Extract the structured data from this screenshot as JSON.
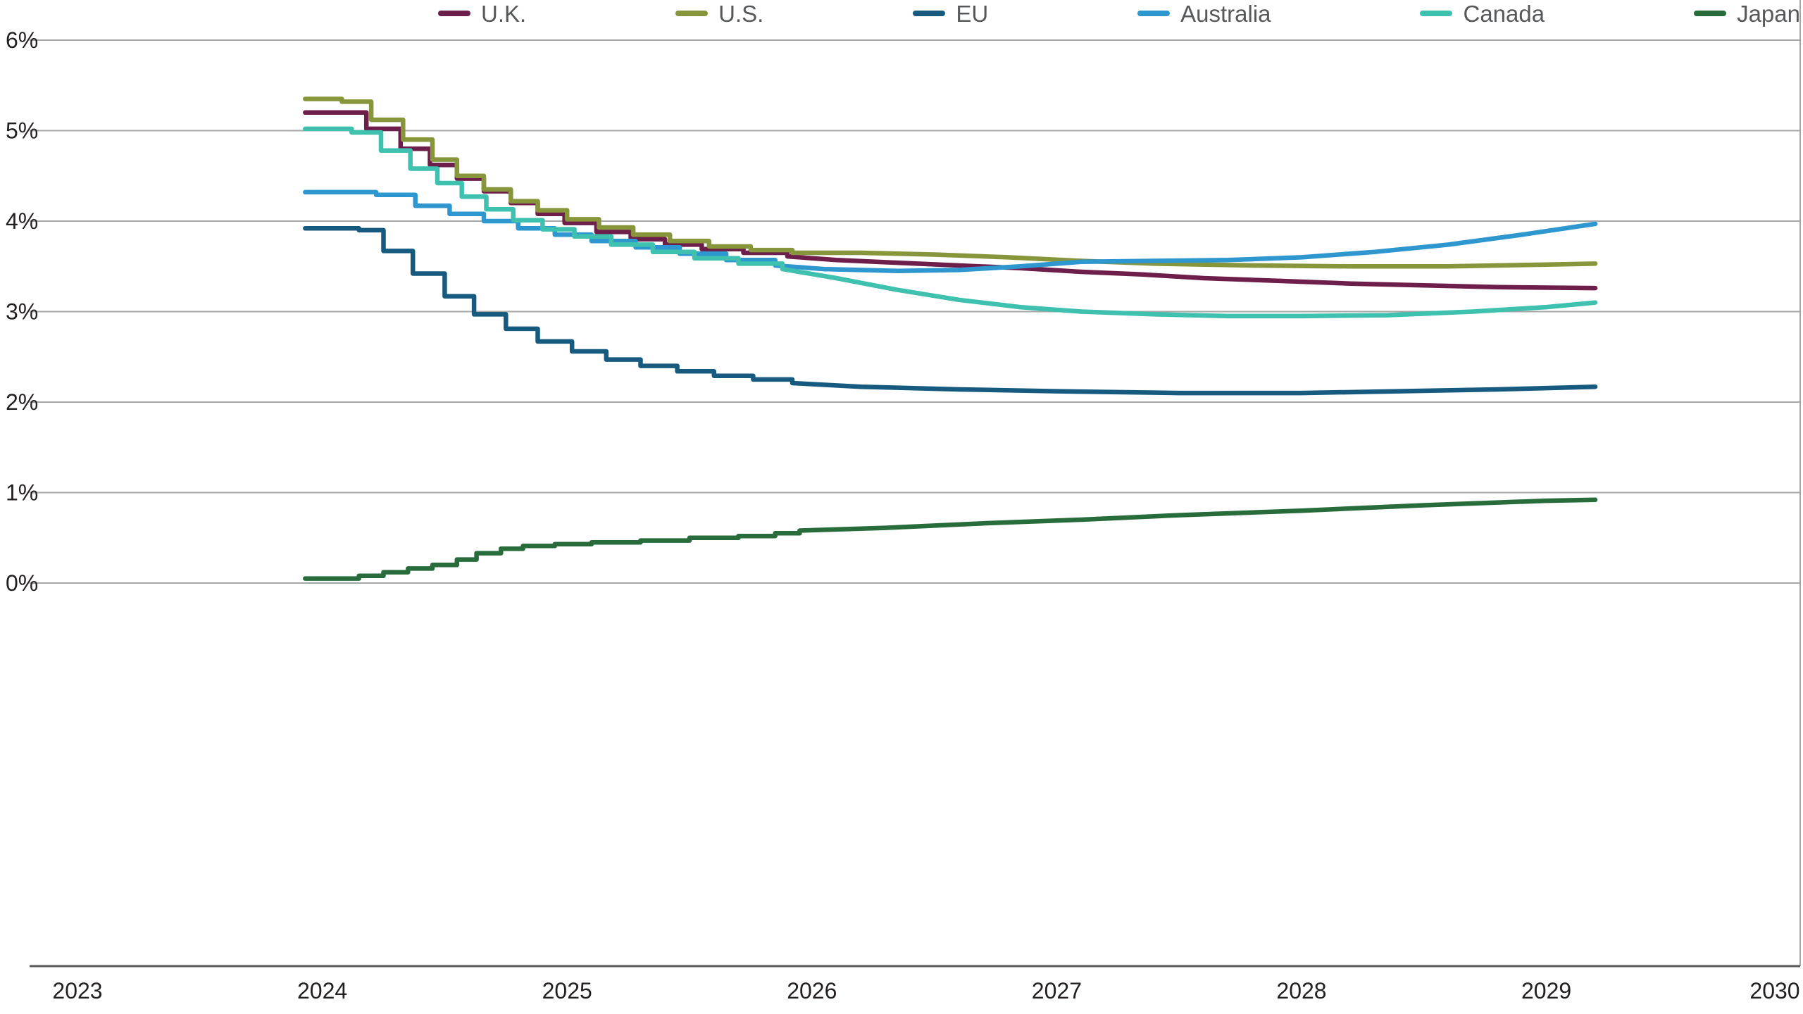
{
  "chart_data": {
    "type": "line",
    "title": "",
    "unit": "%",
    "grid": "horizontal",
    "legend_position": "top-right",
    "xlim": [
      2023,
      2030
    ],
    "ylim": [
      0,
      6
    ],
    "x_ticks": [
      "2023",
      "2024",
      "2025",
      "2026",
      "2027",
      "2028",
      "2029",
      "2030"
    ],
    "x_tick_values": [
      2023,
      2024,
      2025,
      2026,
      2027,
      2028,
      2029,
      2030
    ],
    "y_ticks": [
      "0%",
      "1%",
      "2%",
      "3%",
      "4%",
      "5%",
      "6%"
    ],
    "y_tick_values": [
      0,
      1,
      2,
      3,
      4,
      5,
      6
    ],
    "grid_color": "#a6a6a6",
    "axis_color": "#58595b",
    "tick_label_color": "#231f20",
    "series": [
      {
        "name": "U.K.",
        "color": "#6e1e4b",
        "step_until": 2026.0,
        "points": [
          [
            2023.93,
            5.2
          ],
          [
            2024.18,
            5.02
          ],
          [
            2024.32,
            4.8
          ],
          [
            2024.44,
            4.62
          ],
          [
            2024.55,
            4.47
          ],
          [
            2024.66,
            4.33
          ],
          [
            2024.77,
            4.2
          ],
          [
            2024.88,
            4.08
          ],
          [
            2024.99,
            3.98
          ],
          [
            2025.12,
            3.88
          ],
          [
            2025.26,
            3.8
          ],
          [
            2025.4,
            3.74
          ],
          [
            2025.55,
            3.69
          ],
          [
            2025.72,
            3.65
          ],
          [
            2025.9,
            3.61
          ],
          [
            2026.1,
            3.57
          ],
          [
            2026.35,
            3.54
          ],
          [
            2026.6,
            3.51
          ],
          [
            2026.85,
            3.48
          ],
          [
            2027.1,
            3.44
          ],
          [
            2027.35,
            3.41
          ],
          [
            2027.6,
            3.37
          ],
          [
            2027.9,
            3.34
          ],
          [
            2028.2,
            3.31
          ],
          [
            2028.5,
            3.29
          ],
          [
            2028.8,
            3.27
          ],
          [
            2029.2,
            3.26
          ]
        ]
      },
      {
        "name": "U.S.",
        "color": "#87963a",
        "step_until": 2025.95,
        "points": [
          [
            2023.93,
            5.35
          ],
          [
            2024.08,
            5.32
          ],
          [
            2024.2,
            5.12
          ],
          [
            2024.33,
            4.9
          ],
          [
            2024.45,
            4.68
          ],
          [
            2024.55,
            4.5
          ],
          [
            2024.66,
            4.35
          ],
          [
            2024.77,
            4.22
          ],
          [
            2024.88,
            4.12
          ],
          [
            2025.0,
            4.02
          ],
          [
            2025.13,
            3.93
          ],
          [
            2025.27,
            3.85
          ],
          [
            2025.42,
            3.78
          ],
          [
            2025.58,
            3.72
          ],
          [
            2025.75,
            3.68
          ],
          [
            2025.92,
            3.65
          ],
          [
            2026.2,
            3.65
          ],
          [
            2026.5,
            3.63
          ],
          [
            2026.8,
            3.6
          ],
          [
            2027.1,
            3.56
          ],
          [
            2027.4,
            3.53
          ],
          [
            2027.8,
            3.51
          ],
          [
            2028.2,
            3.5
          ],
          [
            2028.6,
            3.5
          ],
          [
            2029.0,
            3.52
          ],
          [
            2029.2,
            3.53
          ]
        ]
      },
      {
        "name": "EU",
        "color": "#175a80",
        "step_until": 2026.0,
        "points": [
          [
            2023.93,
            3.92
          ],
          [
            2024.15,
            3.9
          ],
          [
            2024.25,
            3.67
          ],
          [
            2024.37,
            3.42
          ],
          [
            2024.5,
            3.17
          ],
          [
            2024.62,
            2.97
          ],
          [
            2024.75,
            2.81
          ],
          [
            2024.88,
            2.67
          ],
          [
            2025.02,
            2.56
          ],
          [
            2025.16,
            2.47
          ],
          [
            2025.3,
            2.4
          ],
          [
            2025.45,
            2.34
          ],
          [
            2025.6,
            2.29
          ],
          [
            2025.76,
            2.25
          ],
          [
            2025.92,
            2.21
          ],
          [
            2026.2,
            2.17
          ],
          [
            2026.6,
            2.14
          ],
          [
            2027.0,
            2.12
          ],
          [
            2027.5,
            2.1
          ],
          [
            2028.0,
            2.1
          ],
          [
            2028.4,
            2.12
          ],
          [
            2028.8,
            2.14
          ],
          [
            2029.2,
            2.17
          ]
        ]
      },
      {
        "name": "Australia",
        "color": "#2e97cf",
        "step_until": 2026.0,
        "points": [
          [
            2023.93,
            4.32
          ],
          [
            2024.22,
            4.29
          ],
          [
            2024.38,
            4.17
          ],
          [
            2024.52,
            4.08
          ],
          [
            2024.66,
            4.0
          ],
          [
            2024.8,
            3.92
          ],
          [
            2024.95,
            3.85
          ],
          [
            2025.1,
            3.78
          ],
          [
            2025.28,
            3.71
          ],
          [
            2025.46,
            3.64
          ],
          [
            2025.65,
            3.57
          ],
          [
            2025.85,
            3.51
          ],
          [
            2026.05,
            3.47
          ],
          [
            2026.35,
            3.45
          ],
          [
            2026.6,
            3.46
          ],
          [
            2026.85,
            3.5
          ],
          [
            2027.1,
            3.55
          ],
          [
            2027.4,
            3.56
          ],
          [
            2027.7,
            3.57
          ],
          [
            2028.0,
            3.6
          ],
          [
            2028.3,
            3.66
          ],
          [
            2028.6,
            3.74
          ],
          [
            2028.9,
            3.85
          ],
          [
            2029.2,
            3.97
          ]
        ]
      },
      {
        "name": "Canada",
        "color": "#3fc1af",
        "step_until": 2025.9,
        "points": [
          [
            2023.93,
            5.02
          ],
          [
            2024.12,
            4.98
          ],
          [
            2024.24,
            4.78
          ],
          [
            2024.36,
            4.58
          ],
          [
            2024.47,
            4.42
          ],
          [
            2024.57,
            4.27
          ],
          [
            2024.67,
            4.13
          ],
          [
            2024.78,
            4.01
          ],
          [
            2024.9,
            3.91
          ],
          [
            2025.03,
            3.83
          ],
          [
            2025.18,
            3.74
          ],
          [
            2025.35,
            3.66
          ],
          [
            2025.52,
            3.59
          ],
          [
            2025.7,
            3.53
          ],
          [
            2025.88,
            3.47
          ],
          [
            2026.1,
            3.37
          ],
          [
            2026.35,
            3.24
          ],
          [
            2026.6,
            3.13
          ],
          [
            2026.85,
            3.05
          ],
          [
            2027.1,
            3.0
          ],
          [
            2027.4,
            2.97
          ],
          [
            2027.7,
            2.95
          ],
          [
            2028.0,
            2.95
          ],
          [
            2028.35,
            2.96
          ],
          [
            2028.7,
            3.0
          ],
          [
            2029.0,
            3.05
          ],
          [
            2029.2,
            3.1
          ]
        ]
      },
      {
        "name": "Japan",
        "color": "#286c3c",
        "step_until": 2026.0,
        "points": [
          [
            2023.93,
            0.05
          ],
          [
            2024.15,
            0.08
          ],
          [
            2024.25,
            0.12
          ],
          [
            2024.35,
            0.16
          ],
          [
            2024.45,
            0.2
          ],
          [
            2024.55,
            0.26
          ],
          [
            2024.63,
            0.33
          ],
          [
            2024.73,
            0.38
          ],
          [
            2024.82,
            0.41
          ],
          [
            2024.95,
            0.43
          ],
          [
            2025.1,
            0.45
          ],
          [
            2025.3,
            0.47
          ],
          [
            2025.5,
            0.5
          ],
          [
            2025.7,
            0.52
          ],
          [
            2025.85,
            0.55
          ],
          [
            2025.95,
            0.58
          ],
          [
            2026.3,
            0.61
          ],
          [
            2026.7,
            0.66
          ],
          [
            2027.1,
            0.7
          ],
          [
            2027.5,
            0.75
          ],
          [
            2028.0,
            0.8
          ],
          [
            2028.5,
            0.86
          ],
          [
            2029.0,
            0.91
          ],
          [
            2029.2,
            0.92
          ]
        ]
      }
    ]
  }
}
